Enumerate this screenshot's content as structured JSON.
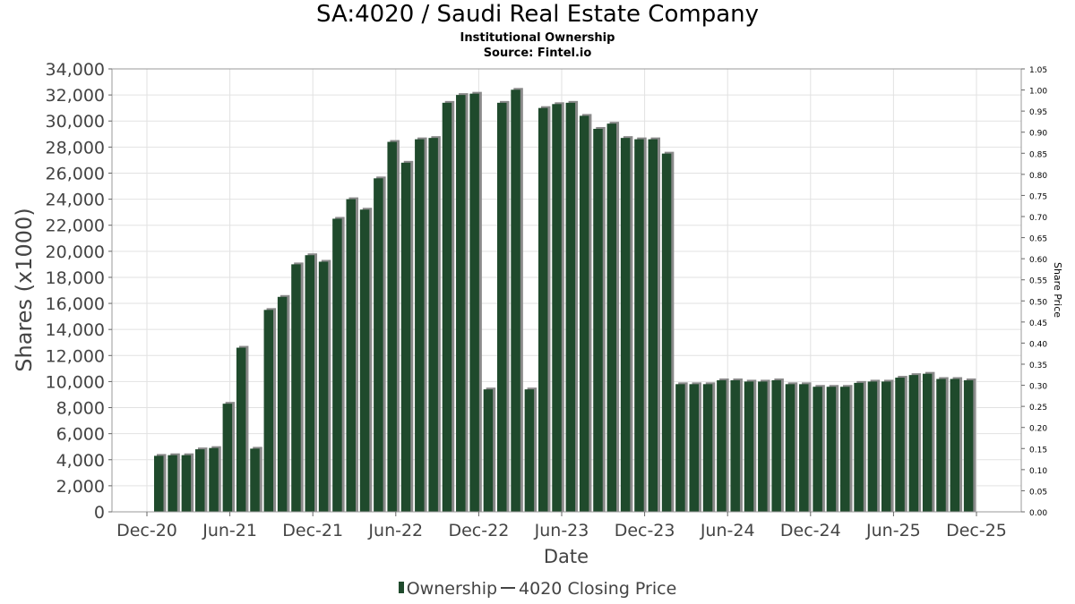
{
  "header": {
    "title": "SA:4020 / Saudi Real Estate Company",
    "subtitle": "Institutional Ownership",
    "source": "Source: Fintel.io"
  },
  "legend": {
    "ownership": "Ownership",
    "price": "4020 Closing Price"
  },
  "colors": {
    "bar": "#1f4a2c",
    "bar_shadow": "#8a8a8a",
    "grid": "#e2e2e2"
  },
  "chart_data": {
    "type": "bar",
    "xlabel": "Date",
    "ylabel": "Shares (x1000)",
    "y2label": "Share Price",
    "ylim": [
      0,
      34000
    ],
    "y2lim": [
      0,
      1.05
    ],
    "grid": true,
    "legend_position": "bottom",
    "x_ticks": [
      "Dec-20",
      "Jun-21",
      "Dec-21",
      "Jun-22",
      "Dec-22",
      "Jun-23",
      "Dec-23",
      "Jun-24",
      "Dec-24",
      "Jun-25",
      "Dec-25"
    ],
    "y_ticks": [
      "0",
      "2,000",
      "4,000",
      "6,000",
      "8,000",
      "10,000",
      "12,000",
      "14,000",
      "16,000",
      "18,000",
      "20,000",
      "22,000",
      "24,000",
      "26,000",
      "28,000",
      "30,000",
      "32,000",
      "34,000"
    ],
    "y2_ticks": [
      "0.00",
      "0.05",
      "0.10",
      "0.15",
      "0.20",
      "0.25",
      "0.30",
      "0.35",
      "0.40",
      "0.45",
      "0.50",
      "0.55",
      "0.60",
      "0.65",
      "0.70",
      "0.75",
      "0.80",
      "0.85",
      "0.90",
      "0.95",
      "1.00",
      "1.05"
    ],
    "series": [
      {
        "name": "Ownership",
        "values": [
          4300,
          4350,
          4350,
          4800,
          4900,
          8300,
          12600,
          4850,
          15500,
          16500,
          19000,
          19700,
          19200,
          22500,
          24000,
          23200,
          25600,
          28400,
          26800,
          28600,
          28700,
          31400,
          32000,
          32100,
          9400,
          31400,
          32400,
          9400,
          31000,
          31300,
          31400,
          30400,
          29400,
          29800,
          28700,
          28600,
          28600,
          27500,
          9800,
          9800,
          9800,
          10100,
          10100,
          10000,
          10000,
          10100,
          9800,
          9800,
          9600,
          9600,
          9600,
          9900,
          10000,
          10000,
          10300,
          10500,
          10600,
          10200,
          10200,
          10100
        ]
      },
      {
        "name": "4020 Closing Price",
        "values": []
      }
    ]
  }
}
